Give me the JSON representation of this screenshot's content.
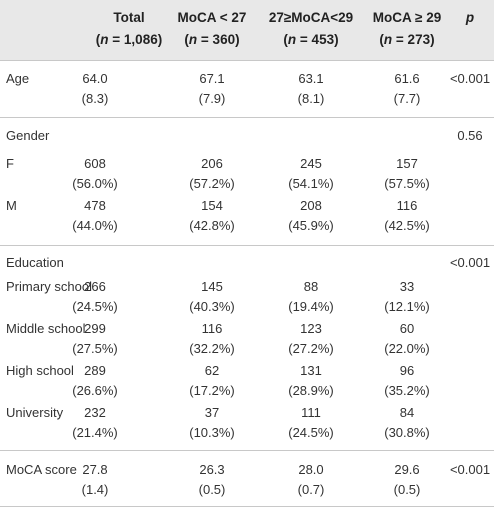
{
  "headers": [
    {
      "line1": "Total",
      "line2_n": "n",
      "line2_rest": " = 1,086)"
    },
    {
      "line1": "MoCA < 27",
      "line2_n": "n",
      "line2_rest": " = 360)"
    },
    {
      "line1": "27≥MoCA<29",
      "line2_n": "n",
      "line2_rest": " = 453)"
    },
    {
      "line1": "MoCA ≥ 29",
      "line2_n": "n",
      "line2_rest": " = 273)"
    },
    {
      "line1": "p",
      "line2_n": "",
      "line2_rest": ""
    }
  ],
  "rows": {
    "age": {
      "label": "Age",
      "v": [
        [
          "64.0",
          "(8.3)"
        ],
        [
          "67.1",
          "(7.9)"
        ],
        [
          "63.1",
          "(8.1)"
        ],
        [
          "61.6",
          "(7.7)"
        ]
      ],
      "p": "<0.001"
    },
    "gender": {
      "label": "Gender",
      "p": "0.56"
    },
    "f": {
      "label": "F",
      "v": [
        [
          "608",
          "(56.0%)"
        ],
        [
          "206",
          "(57.2%)"
        ],
        [
          "245",
          "(54.1%)"
        ],
        [
          "157",
          "(57.5%)"
        ]
      ]
    },
    "m": {
      "label": "M",
      "v": [
        [
          "478",
          "(44.0%)"
        ],
        [
          "154",
          "(42.8%)"
        ],
        [
          "208",
          "(45.9%)"
        ],
        [
          "116",
          "(42.5%)"
        ]
      ]
    },
    "education": {
      "label": "Education",
      "p": "<0.001"
    },
    "primary": {
      "label": "Primary school",
      "v": [
        [
          "266",
          "(24.5%)"
        ],
        [
          "145",
          "(40.3%)"
        ],
        [
          "88",
          "(19.4%)"
        ],
        [
          "33",
          "(12.1%)"
        ]
      ]
    },
    "middle": {
      "label": "Middle school",
      "v": [
        [
          "299",
          "(27.5%)"
        ],
        [
          "116",
          "(32.2%)"
        ],
        [
          "123",
          "(27.2%)"
        ],
        [
          "60",
          "(22.0%)"
        ]
      ]
    },
    "high": {
      "label": "High school",
      "v": [
        [
          "289",
          "(26.6%)"
        ],
        [
          "62",
          "(17.2%)"
        ],
        [
          "131",
          "(28.9%)"
        ],
        [
          "96",
          "(35.2%)"
        ]
      ]
    },
    "university": {
      "label": "University",
      "v": [
        [
          "232",
          "(21.4%)"
        ],
        [
          "37",
          "(10.3%)"
        ],
        [
          "111",
          "(24.5%)"
        ],
        [
          "84",
          "(30.8%)"
        ]
      ]
    },
    "moca": {
      "label": "MoCA score",
      "v": [
        [
          "27.8",
          "(1.4)"
        ],
        [
          "26.3",
          "(0.5)"
        ],
        [
          "28.0",
          "(0.7)"
        ],
        [
          "29.6",
          "(0.5)"
        ]
      ],
      "p": "<0.001"
    }
  }
}
